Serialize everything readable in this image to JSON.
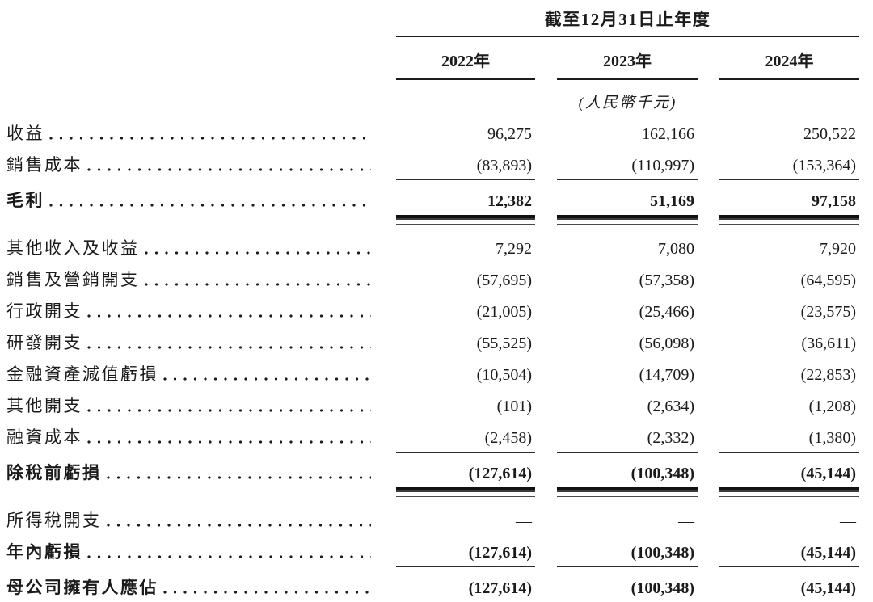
{
  "table": {
    "period_header": "截至12月31日止年度",
    "year_columns": [
      "2022年",
      "2023年",
      "2024年"
    ],
    "unit_note": "(人民幣千元)",
    "rows": [
      {
        "label": "收益",
        "values": [
          "96,275",
          "162,166",
          "250,522"
        ]
      },
      {
        "label": "銷售成本",
        "values": [
          "(83,893)",
          "(110,997)",
          "(153,364)"
        ]
      },
      {
        "label": "毛利",
        "values": [
          "12,382",
          "51,169",
          "97,158"
        ]
      },
      {
        "label": "其他收入及收益",
        "values": [
          "7,292",
          "7,080",
          "7,920"
        ]
      },
      {
        "label": "銷售及營銷開支",
        "values": [
          "(57,695)",
          "(57,358)",
          "(64,595)"
        ]
      },
      {
        "label": "行政開支",
        "values": [
          "(21,005)",
          "(25,466)",
          "(23,575)"
        ]
      },
      {
        "label": "研發開支",
        "values": [
          "(55,525)",
          "(56,098)",
          "(36,611)"
        ]
      },
      {
        "label": "金融資產減值虧損",
        "values": [
          "(10,504)",
          "(14,709)",
          "(22,853)"
        ]
      },
      {
        "label": "其他開支",
        "values": [
          "(101)",
          "(2,634)",
          "(1,208)"
        ]
      },
      {
        "label": "融資成本",
        "values": [
          "(2,458)",
          "(2,332)",
          "(1,380)"
        ]
      },
      {
        "label": "除稅前虧損",
        "values": [
          "(127,614)",
          "(100,348)",
          "(45,144)"
        ]
      },
      {
        "label": "所得稅開支",
        "values": [
          "—",
          "—",
          "—"
        ]
      },
      {
        "label": "年內虧損",
        "values": [
          "(127,614)",
          "(100,348)",
          "(45,144)"
        ]
      },
      {
        "label": "母公司擁有人應佔",
        "values": [
          "(127,614)",
          "(100,348)",
          "(45,144)"
        ]
      }
    ]
  },
  "colors": {
    "text": "#1b1b1b",
    "rule": "#1b1b1b"
  }
}
